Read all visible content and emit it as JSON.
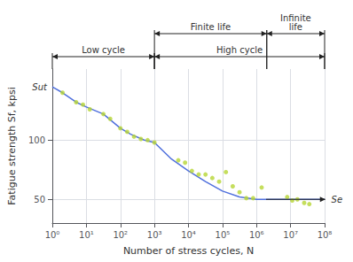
{
  "chart_data": {
    "type": "line",
    "xlabel": "Number of stress cycles, N",
    "ylabel": "Fatigue strength Sf, kpsi",
    "log": "x",
    "grid": true,
    "xlim": [
      1,
      100000000
    ],
    "ylim": [
      30,
      160
    ],
    "xticks": [
      {
        "value": 1,
        "label": "10⁰"
      },
      {
        "value": 10,
        "label": "10¹"
      },
      {
        "value": 100,
        "label": "10²"
      },
      {
        "value": 1000,
        "label": "10³"
      },
      {
        "value": 10000,
        "label": "10⁴"
      },
      {
        "value": 100000,
        "label": "10⁵"
      },
      {
        "value": 1000000,
        "label": "10⁶"
      },
      {
        "value": 10000000,
        "label": "10⁷"
      },
      {
        "value": 100000000,
        "label": "10⁸"
      }
    ],
    "yticks": [
      50,
      100
    ],
    "series": [
      {
        "type": "line",
        "x": [
          1,
          1.995262315,
          5.011872336,
          10,
          31.6227766,
          100,
          199.5262315,
          501.1872336,
          1000,
          3162.27766,
          10000,
          31622.7766,
          100000,
          316227.766,
          1000000,
          1995262.315,
          10000000,
          100000000
        ],
        "values": [
          145,
          140,
          132,
          128,
          122,
          110,
          105,
          100,
          98,
          84,
          74,
          65,
          57,
          52,
          50,
          50,
          50,
          50
        ]
      },
      {
        "type": "scatter",
        "x": [
          1.995262315,
          5.011872336,
          7.943282347,
          12.58925412,
          31.6227766,
          50.11872336,
          100,
          158.4893192,
          251.1886432,
          398.1071706,
          630.9573445,
          1000,
          5011.872336,
          7943.282347,
          12589.25412,
          19952.62315,
          31622.7766,
          50118.72336,
          79432.82347,
          125892.5412,
          199526.2315,
          316227.766,
          501187.2336,
          794328.2347,
          1412537.545,
          7943282.347,
          11220184.54,
          15848931.92,
          25118864.32,
          35481338.92
        ],
        "values": [
          140,
          132,
          130,
          126,
          122,
          118,
          110,
          107,
          103,
          101,
          100,
          98,
          83,
          81,
          74,
          71,
          71,
          68,
          65,
          73,
          61,
          56,
          51,
          51,
          60,
          52,
          49,
          50,
          47,
          46
        ]
      }
    ],
    "annotations": [
      {
        "text": "Sut",
        "x": 0.8317637711,
        "y": 145
      },
      {
        "text": "Se",
        "x": 131825673.9,
        "y": 50
      }
    ],
    "arrows": [
      {
        "x": [
          1905460.718,
          104712854.8
        ],
        "y": [
          50,
          50
        ]
      }
    ],
    "spans": [
      {
        "text": "Low cycle",
        "x": [
          1,
          1000
        ]
      },
      {
        "text": "High cycle",
        "x": [
          1000,
          100000000
        ]
      },
      {
        "text": "Finite life",
        "x": [
          1000,
          1995262.315
        ]
      },
      {
        "text": "Infinite\nlife",
        "x": [
          1995262.315,
          100000000
        ]
      }
    ]
  }
}
